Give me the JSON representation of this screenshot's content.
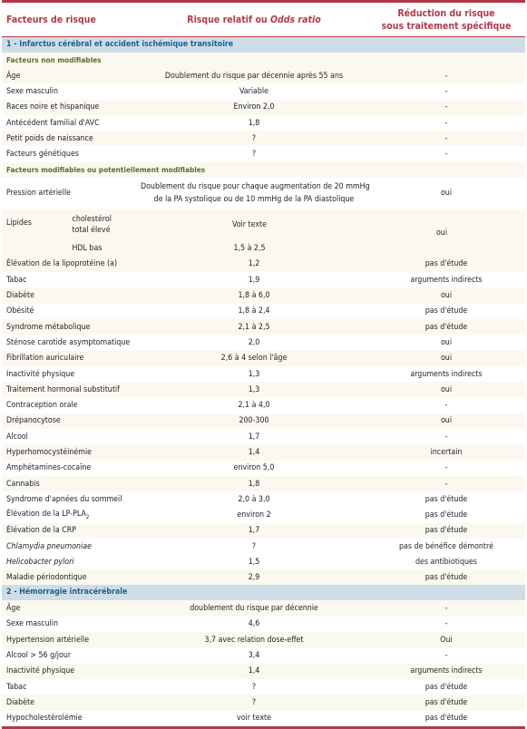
{
  "header": {
    "col1": "Facteurs de risque",
    "col2_prefix": "Risque relatif ou ",
    "col2_italic": "Odds ratio",
    "col3_line1": "Réduction du risque",
    "col3_line2": "sous traitement spécifique"
  },
  "section1": {
    "title": "1 - Infarctus cérébral et accident ischémique transitoire",
    "sub_nonmod": "Facteurs non modifiables",
    "nonmod_rows": [
      {
        "factor": "Âge",
        "risk": "Doublement du risque par décennie après 55 ans",
        "reduction": "-"
      },
      {
        "factor": "Sexe masculin",
        "risk": "Variable",
        "reduction": "-"
      },
      {
        "factor": "Races noire et hispanique",
        "risk": "Environ 2,0",
        "reduction": "-"
      },
      {
        "factor": "Antécédent familial d'AVC",
        "risk": "1,8",
        "reduction": "-"
      },
      {
        "factor": "Petit poids de naissance",
        "risk": "?",
        "reduction": "-"
      },
      {
        "factor": "Facteurs génétiques",
        "risk": "?",
        "reduction": "-"
      }
    ],
    "sub_mod": "Facteurs modifiables ou potentiellement modifiables",
    "pression": {
      "factor": "Pression artérielle",
      "risk_line1": "Doublement du risque pour chaque augmentation de 20 mmHg",
      "risk_line2": "de la PA systolique ou de 10 mmHg de la PA diastolique",
      "reduction": "oui"
    },
    "lipides": {
      "factor": "Lipides",
      "sub1_line1": "cholestérol",
      "sub1_line2": "total élevé",
      "risk1": "Voir texte",
      "sub2": "HDL bas",
      "risk2": "1,5 à 2,5",
      "reduction": "oui"
    },
    "mod_rows": [
      {
        "factor": "Élévation de la lipoprotéine (a)",
        "risk": "1,2",
        "reduction": "pas d'étude"
      },
      {
        "factor": "Tabac",
        "risk": "1,9",
        "reduction": "arguments indirects"
      },
      {
        "factor": "Diabète",
        "risk": "1,8 à 6,0",
        "reduction": "oui"
      },
      {
        "factor": "Obésité",
        "risk": "1,8 à 2,4",
        "reduction": "pas d'étude"
      },
      {
        "factor": "Syndrome métabolique",
        "risk": "2,1 à 2,5",
        "reduction": "pas d'étude"
      },
      {
        "factor": "Sténose carotide asymptomatique",
        "risk": "2,0",
        "reduction": "oui"
      },
      {
        "factor": "Fibrillation auriculaire",
        "risk": "2,6 à 4 selon l'âge",
        "reduction": "oui"
      },
      {
        "factor": "Inactivité physique",
        "risk": "1,3",
        "reduction": "arguments indirects"
      },
      {
        "factor": "Traitement hormonal substitutif",
        "risk": "1,3",
        "reduction": "oui"
      },
      {
        "factor": "Contraception orale",
        "risk": "2,1 à 4,0",
        "reduction": "-"
      },
      {
        "factor": "Drépanocytose",
        "risk": "200-300",
        "reduction": "oui"
      },
      {
        "factor": "Alcool",
        "risk": "1,7",
        "reduction": "-"
      },
      {
        "factor": "Hyperhomocystéinémie",
        "risk": "1,4",
        "reduction": "incertain"
      },
      {
        "factor": "Amphétamines-cocaïne",
        "risk": "environ 5,0",
        "reduction": "-"
      },
      {
        "factor": "Cannabis",
        "risk": "1,8",
        "reduction": "-"
      },
      {
        "factor": "Syndrome d'apnées du sommeil",
        "risk": "2,0 à 3,0",
        "reduction": "pas d'étude"
      }
    ],
    "lppla2": {
      "factor_prefix": "Élévation de la LP-PLA",
      "factor_sub": "2",
      "risk": "environ 2",
      "reduction": "pas d'étude"
    },
    "crp": {
      "factor": "Élévation de la CRP",
      "risk": "1,7",
      "reduction": "pas d'étude"
    },
    "infections": {
      "factor1": "Chlamydia pneumoniae",
      "risk1": "?",
      "reduction1": "pas de bénéfice démontré",
      "factor2": "Helicobacter pylori",
      "risk2": "1,5",
      "reduction2": "des antibiotiques"
    },
    "perio": {
      "factor": "Maladie périodontique",
      "risk": "2,9",
      "reduction": "pas d'étude"
    }
  },
  "section2": {
    "title": "2 - Hémorragie intracérébrale",
    "rows": [
      {
        "factor": "Âge",
        "risk": "doublement du risque par décennie",
        "reduction": "-"
      },
      {
        "factor": "Sexe masculin",
        "risk": "4,6",
        "reduction": "-"
      },
      {
        "factor": "Hypertension artérielle",
        "risk": "3,7 avec relation dose-effet",
        "reduction": "Oui"
      },
      {
        "factor": "Alcool > 56 g/jour",
        "risk": "3,4",
        "reduction": "-"
      },
      {
        "factor": "Inactivité physique",
        "risk": "1,4",
        "reduction": "arguments indirects"
      },
      {
        "factor": "Tabac",
        "risk": "?",
        "reduction": "pas d'étude"
      },
      {
        "factor": "Diabète",
        "risk": "?",
        "reduction": "pas d'étude"
      },
      {
        "factor": "Hypocholestérolémie",
        "risk": "voir texte",
        "reduction": "pas d'étude"
      }
    ]
  }
}
